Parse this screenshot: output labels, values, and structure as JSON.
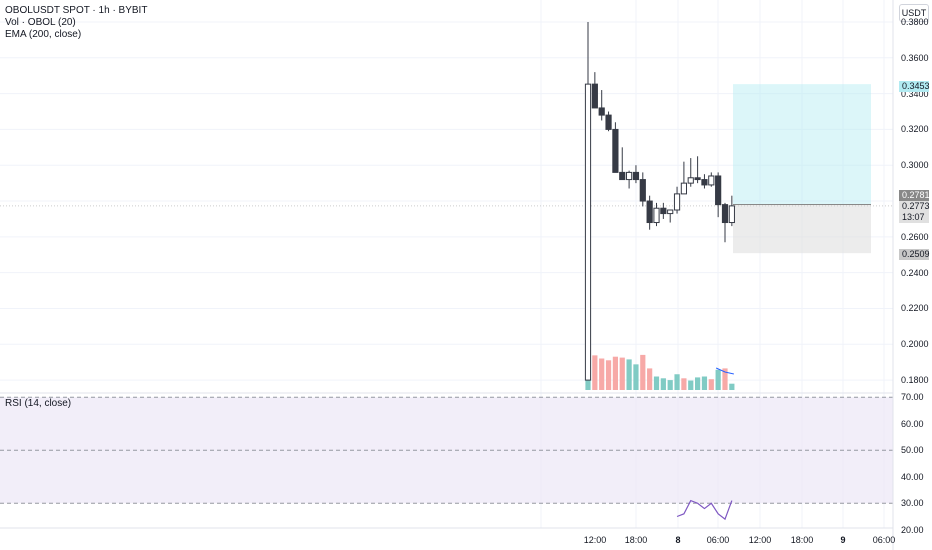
{
  "legend": {
    "symbol_line": "OBOLUSDT SPOT · 1h · BYBIT",
    "volume_line": "Vol · OBOL (20)",
    "ema_line": "EMA (200, close)"
  },
  "rsi_legend": "RSI (14, close)",
  "currency_button": "USDT",
  "price_axis_labels": [
    "0.3800",
    "0.3600",
    "0.3400",
    "0.3200",
    "0.3000",
    "0.2600",
    "0.2400",
    "0.2200",
    "0.2000",
    "0.1800"
  ],
  "rsi_axis_labels": [
    "70.00",
    "60.00",
    "50.00",
    "40.00",
    "30.00",
    "20.00"
  ],
  "time_axis_labels": [
    "12:00",
    "18:00",
    "8",
    "06:00",
    "12:00",
    "18:00",
    "9",
    "06:00"
  ],
  "price_badges": {
    "target": "0.3453",
    "entry": "0.2781",
    "current": "0.2773",
    "countdown": "13:07",
    "stop": "0.2509"
  },
  "colors": {
    "up": "#ffffff",
    "down": "#363a45",
    "vol_up": "#80cbc4",
    "vol_down": "#f7a9a7",
    "profit_zone": "#b2ebf2",
    "loss_zone": "#e0e0e0",
    "rsi_band": "#ede7f6",
    "rsi_line": "#7e57c2"
  },
  "chart_data": {
    "type": "candlestick",
    "timeframe": "1h",
    "candles": [
      {
        "o": 0.18,
        "h": 0.38,
        "l": 0.18,
        "c": 0.3453
      },
      {
        "o": 0.3453,
        "h": 0.352,
        "l": 0.332,
        "c": 0.332
      },
      {
        "o": 0.332,
        "h": 0.342,
        "l": 0.325,
        "c": 0.328
      },
      {
        "o": 0.328,
        "h": 0.33,
        "l": 0.319,
        "c": 0.32
      },
      {
        "o": 0.32,
        "h": 0.324,
        "l": 0.296,
        "c": 0.296
      },
      {
        "o": 0.296,
        "h": 0.31,
        "l": 0.292,
        "c": 0.292
      },
      {
        "o": 0.292,
        "h": 0.297,
        "l": 0.287,
        "c": 0.296
      },
      {
        "o": 0.296,
        "h": 0.3,
        "l": 0.29,
        "c": 0.292
      },
      {
        "o": 0.292,
        "h": 0.296,
        "l": 0.277,
        "c": 0.28
      },
      {
        "o": 0.28,
        "h": 0.283,
        "l": 0.264,
        "c": 0.268
      },
      {
        "o": 0.268,
        "h": 0.279,
        "l": 0.266,
        "c": 0.276
      },
      {
        "o": 0.276,
        "h": 0.279,
        "l": 0.27,
        "c": 0.273
      },
      {
        "o": 0.273,
        "h": 0.275,
        "l": 0.268,
        "c": 0.275
      },
      {
        "o": 0.275,
        "h": 0.288,
        "l": 0.273,
        "c": 0.284
      },
      {
        "o": 0.284,
        "h": 0.302,
        "l": 0.284,
        "c": 0.29
      },
      {
        "o": 0.29,
        "h": 0.304,
        "l": 0.288,
        "c": 0.293
      },
      {
        "o": 0.293,
        "h": 0.305,
        "l": 0.29,
        "c": 0.292
      },
      {
        "o": 0.292,
        "h": 0.295,
        "l": 0.287,
        "c": 0.289
      },
      {
        "o": 0.289,
        "h": 0.296,
        "l": 0.288,
        "c": 0.294
      },
      {
        "o": 0.294,
        "h": 0.296,
        "l": 0.271,
        "c": 0.278
      },
      {
        "o": 0.278,
        "h": 0.279,
        "l": 0.257,
        "c": 0.268
      },
      {
        "o": 0.268,
        "h": 0.283,
        "l": 0.266,
        "c": 0.2773
      }
    ],
    "volume_direction": [
      "up",
      "down",
      "down",
      "down",
      "down",
      "down",
      "up",
      "up",
      "down",
      "down",
      "up",
      "up",
      "up",
      "up",
      "down",
      "up",
      "up",
      "up",
      "down",
      "up",
      "down",
      "up"
    ],
    "volume_relative": [
      1.0,
      0.77,
      0.7,
      0.66,
      0.74,
      0.72,
      0.68,
      0.57,
      0.78,
      0.48,
      0.3,
      0.26,
      0.22,
      0.35,
      0.26,
      0.21,
      0.28,
      0.3,
      0.24,
      0.45,
      0.48,
      0.14
    ],
    "rsi": [
      null,
      null,
      null,
      null,
      null,
      null,
      null,
      null,
      null,
      null,
      null,
      null,
      null,
      25,
      26,
      31,
      30,
      28,
      30,
      26,
      24,
      31
    ],
    "position": {
      "target": 0.3453,
      "entry": 0.2781,
      "stop": 0.2509
    },
    "price_range": [
      0.17,
      0.38
    ],
    "rsi_range": [
      15,
      75
    ],
    "rsi_levels": [
      70,
      50,
      30
    ]
  }
}
